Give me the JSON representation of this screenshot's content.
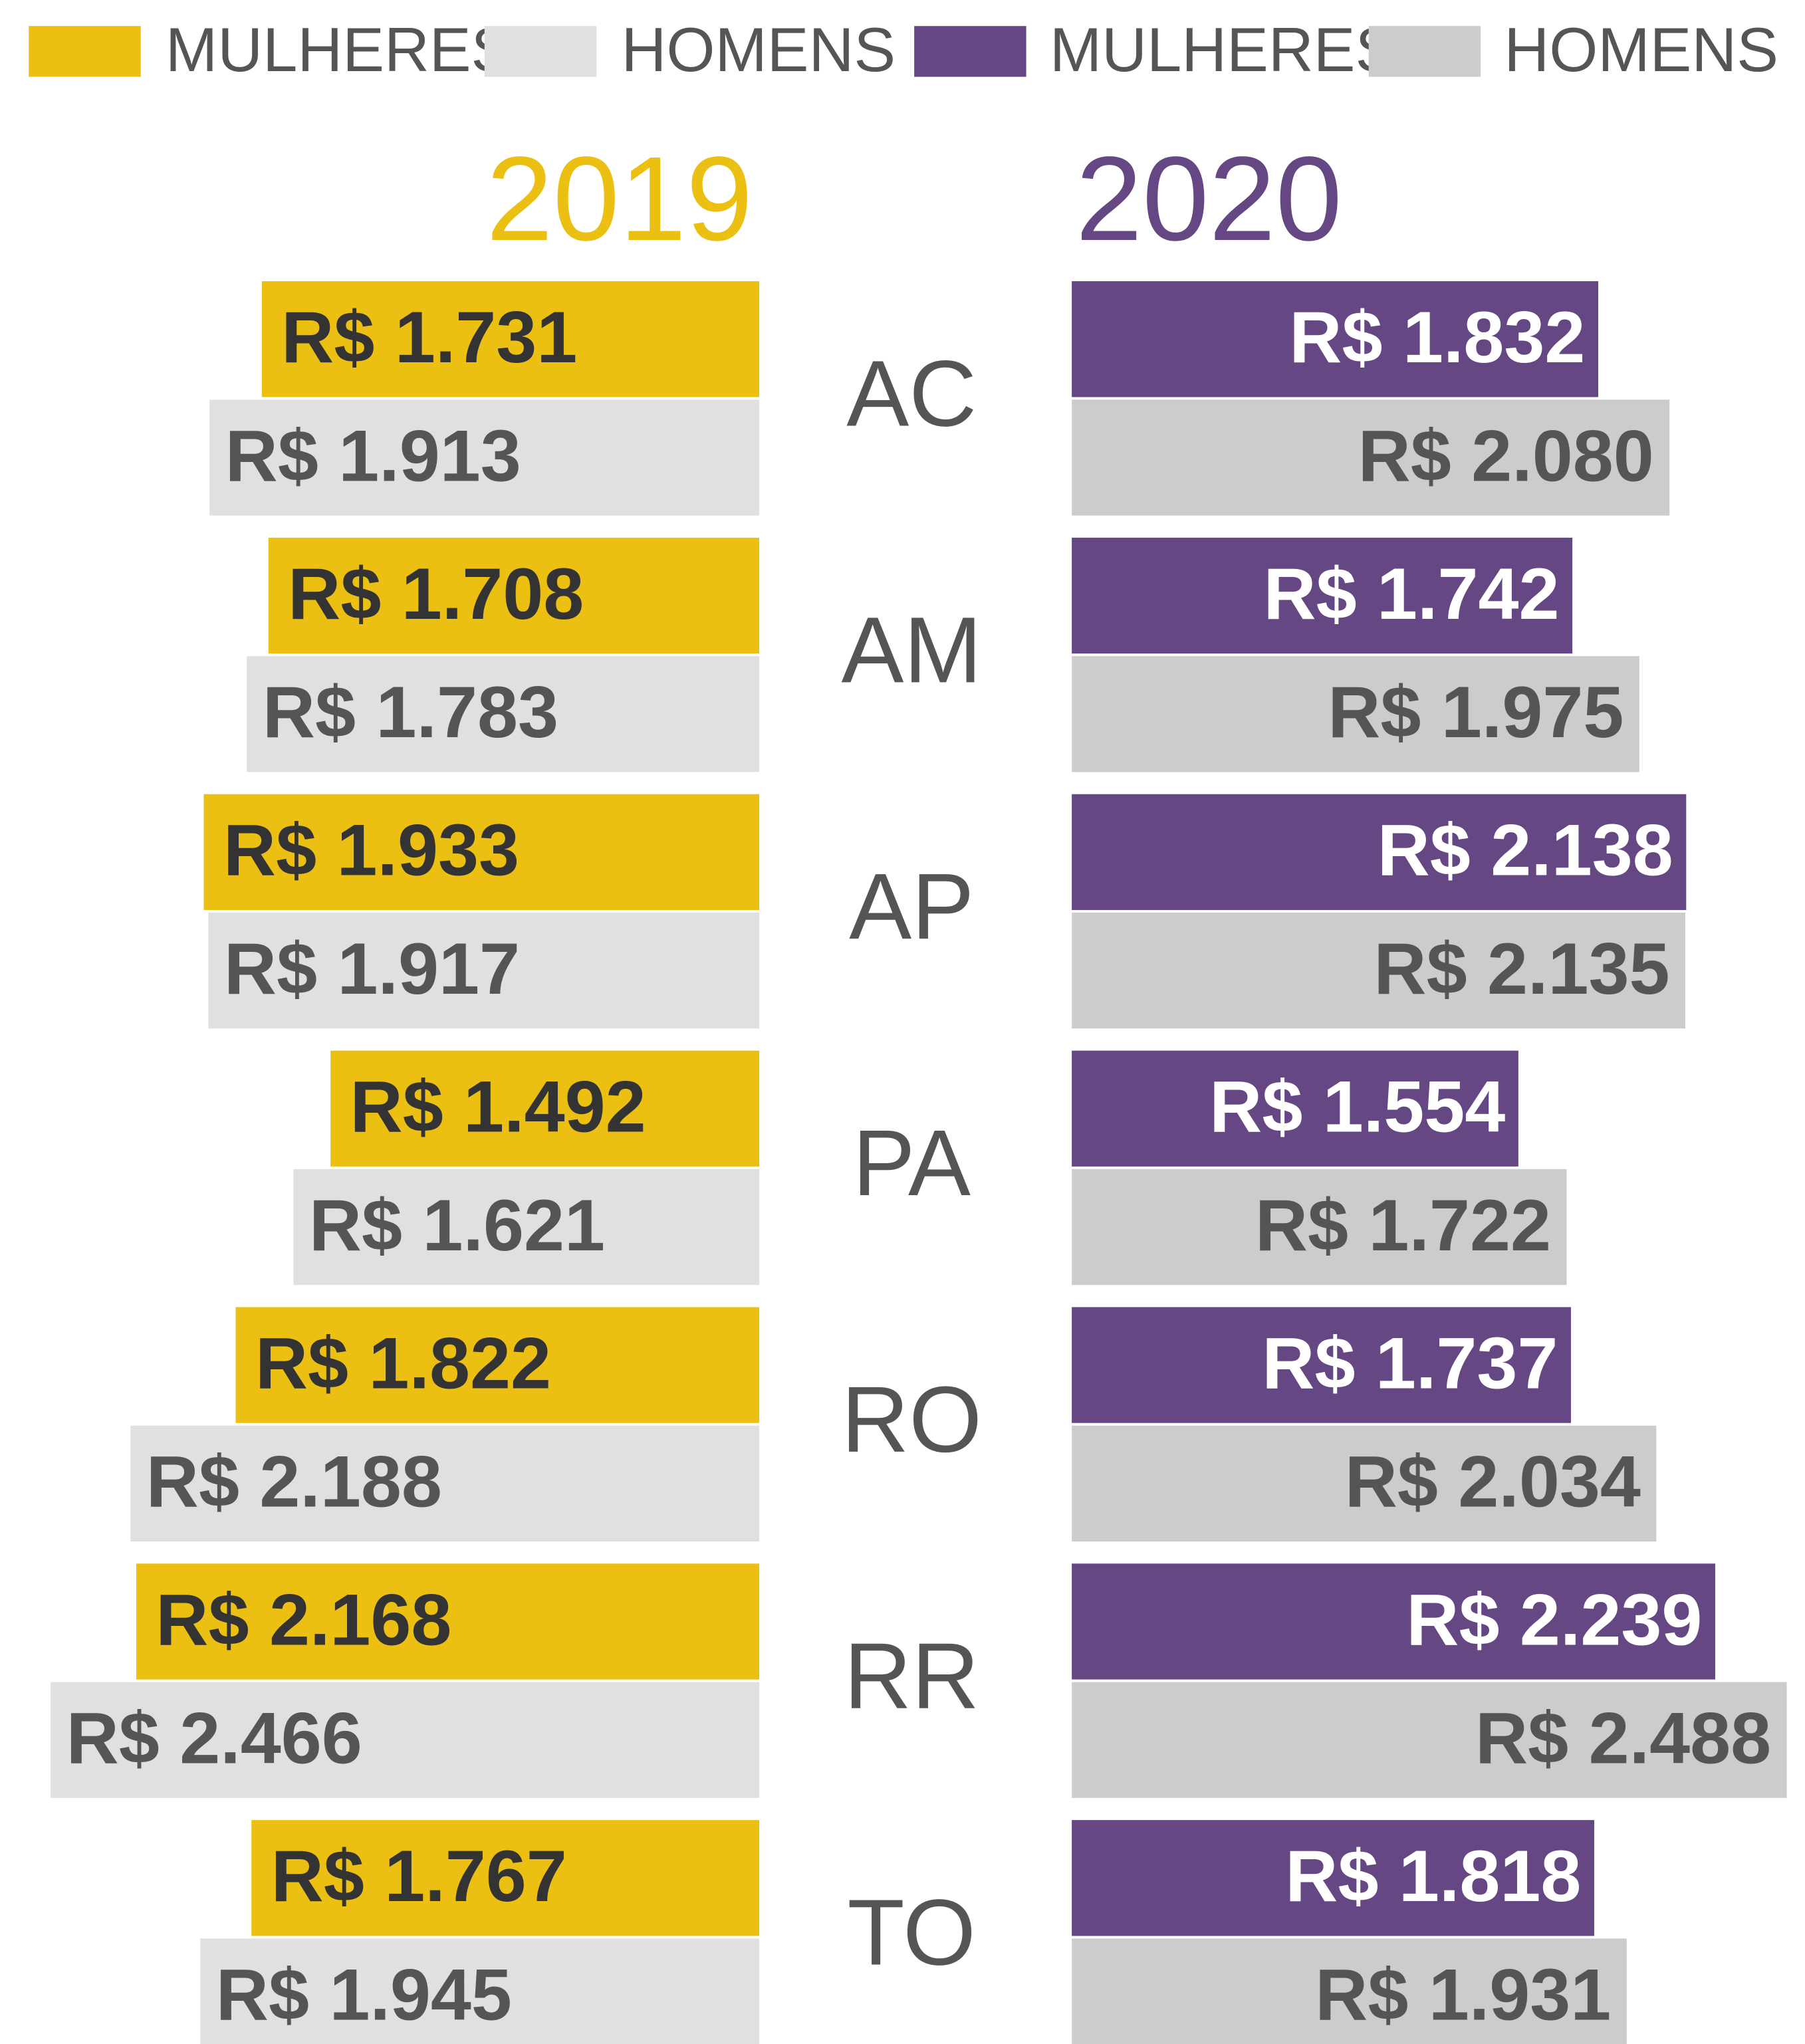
{
  "chart_data": {
    "type": "butterfly-bar",
    "categories": [
      "AC",
      "AM",
      "AP",
      "PA",
      "RO",
      "RR",
      "TO"
    ],
    "panels": [
      {
        "title": "2019",
        "series": [
          {
            "name": "MULHERES",
            "color": "#ebc012",
            "values": [
              1731,
              1708,
              1933,
              1492,
              1822,
              2168,
              1767
            ],
            "value_labels": [
              "R$ 1.731",
              "R$ 1.708",
              "R$ 1.933",
              "R$ 1.492",
              "R$ 1.822",
              "R$ 2.168",
              "R$ 1.767"
            ]
          },
          {
            "name": "HOMENS",
            "color": "#e0e0e0",
            "values": [
              1913,
              1783,
              1917,
              1621,
              2188,
              2466,
              1945
            ],
            "value_labels": [
              "R$ 1.913",
              "R$ 1.783",
              "R$ 1.917",
              "R$ 1.621",
              "R$ 2.188",
              "R$ 2.466",
              "R$ 1.945"
            ]
          }
        ]
      },
      {
        "title": "2020",
        "series": [
          {
            "name": "MULHERES",
            "color": "#654783",
            "values": [
              1832,
              1742,
              2138,
              1554,
              1737,
              2239,
              1818
            ],
            "value_labels": [
              "R$ 1.832",
              "R$ 1.742",
              "R$ 2.138",
              "R$ 1.554",
              "R$ 1.737",
              "R$ 2.239",
              "R$ 1.818"
            ]
          },
          {
            "name": "HOMENS",
            "color": "#cccccc",
            "values": [
              2080,
              1975,
              2135,
              1722,
              2034,
              2488,
              1931
            ],
            "value_labels": [
              "R$ 2.080",
              "R$ 1.975",
              "R$ 2.135",
              "R$ 1.722",
              "R$ 2.034",
              "R$ 2.488",
              "R$ 1.931"
            ]
          }
        ]
      }
    ]
  }
}
